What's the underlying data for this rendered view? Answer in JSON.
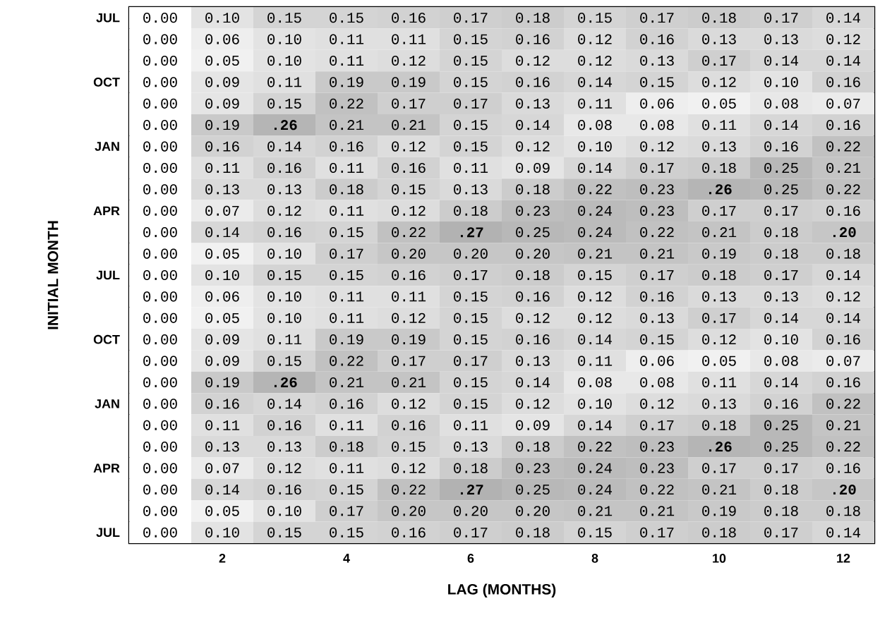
{
  "chart_data": {
    "type": "heatmap",
    "xlabel": "LAG (MONTHS)",
    "ylabel": "INITIAL MONTH",
    "categories": [
      null,
      "2",
      null,
      "4",
      null,
      "6",
      null,
      "8",
      null,
      "10",
      null,
      "12"
    ],
    "y_categories": [
      "JUL",
      null,
      null,
      "OCT",
      null,
      null,
      "JAN",
      null,
      null,
      "APR",
      null,
      null,
      "JUL",
      null,
      null,
      "OCT",
      null,
      null,
      "JAN",
      null,
      null,
      "APR",
      null,
      null,
      "JUL"
    ],
    "cells": [
      [
        0.0,
        0.1,
        0.15,
        0.15,
        0.16,
        0.17,
        0.18,
        0.15,
        0.17,
        0.18,
        0.17,
        0.14
      ],
      [
        0.0,
        0.06,
        0.1,
        0.11,
        0.11,
        0.15,
        0.16,
        0.12,
        0.16,
        0.13,
        0.13,
        0.12
      ],
      [
        0.0,
        0.05,
        0.1,
        0.11,
        0.12,
        0.15,
        0.12,
        0.12,
        0.13,
        0.17,
        0.14,
        0.14
      ],
      [
        0.0,
        0.09,
        0.11,
        0.19,
        0.19,
        0.15,
        0.16,
        0.14,
        0.15,
        0.12,
        0.1,
        0.16
      ],
      [
        0.0,
        0.09,
        0.15,
        0.22,
        0.17,
        0.17,
        0.13,
        0.11,
        0.06,
        0.05,
        0.08,
        0.07
      ],
      [
        0.0,
        0.19,
        0.26,
        0.21,
        0.21,
        0.15,
        0.14,
        0.08,
        0.08,
        0.11,
        0.14,
        0.16
      ],
      [
        0.0,
        0.16,
        0.14,
        0.16,
        0.12,
        0.15,
        0.12,
        0.1,
        0.12,
        0.13,
        0.16,
        0.22
      ],
      [
        0.0,
        0.11,
        0.16,
        0.11,
        0.16,
        0.11,
        0.09,
        0.14,
        0.17,
        0.18,
        0.25,
        0.21
      ],
      [
        0.0,
        0.13,
        0.13,
        0.18,
        0.15,
        0.13,
        0.18,
        0.22,
        0.23,
        0.26,
        0.25,
        0.22
      ],
      [
        0.0,
        0.07,
        0.12,
        0.11,
        0.12,
        0.18,
        0.23,
        0.24,
        0.23,
        0.17,
        0.17,
        0.16
      ],
      [
        0.0,
        0.14,
        0.16,
        0.15,
        0.22,
        0.27,
        0.25,
        0.24,
        0.22,
        0.21,
        0.18,
        0.2
      ],
      [
        0.0,
        0.05,
        0.1,
        0.17,
        0.2,
        0.2,
        0.2,
        0.21,
        0.21,
        0.19,
        0.18,
        0.18
      ],
      [
        0.0,
        0.1,
        0.15,
        0.15,
        0.16,
        0.17,
        0.18,
        0.15,
        0.17,
        0.18,
        0.17,
        0.14
      ],
      [
        0.0,
        0.06,
        0.1,
        0.11,
        0.11,
        0.15,
        0.16,
        0.12,
        0.16,
        0.13,
        0.13,
        0.12
      ],
      [
        0.0,
        0.05,
        0.1,
        0.11,
        0.12,
        0.15,
        0.12,
        0.12,
        0.13,
        0.17,
        0.14,
        0.14
      ],
      [
        0.0,
        0.09,
        0.11,
        0.19,
        0.19,
        0.15,
        0.16,
        0.14,
        0.15,
        0.12,
        0.1,
        0.16
      ],
      [
        0.0,
        0.09,
        0.15,
        0.22,
        0.17,
        0.17,
        0.13,
        0.11,
        0.06,
        0.05,
        0.08,
        0.07
      ],
      [
        0.0,
        0.19,
        0.26,
        0.21,
        0.21,
        0.15,
        0.14,
        0.08,
        0.08,
        0.11,
        0.14,
        0.16
      ],
      [
        0.0,
        0.16,
        0.14,
        0.16,
        0.12,
        0.15,
        0.12,
        0.1,
        0.12,
        0.13,
        0.16,
        0.22
      ],
      [
        0.0,
        0.11,
        0.16,
        0.11,
        0.16,
        0.11,
        0.09,
        0.14,
        0.17,
        0.18,
        0.25,
        0.21
      ],
      [
        0.0,
        0.13,
        0.13,
        0.18,
        0.15,
        0.13,
        0.18,
        0.22,
        0.23,
        0.26,
        0.25,
        0.22
      ],
      [
        0.0,
        0.07,
        0.12,
        0.11,
        0.12,
        0.18,
        0.23,
        0.24,
        0.23,
        0.17,
        0.17,
        0.16
      ],
      [
        0.0,
        0.14,
        0.16,
        0.15,
        0.22,
        0.27,
        0.25,
        0.24,
        0.22,
        0.21,
        0.18,
        0.2
      ],
      [
        0.0,
        0.05,
        0.1,
        0.17,
        0.2,
        0.2,
        0.2,
        0.21,
        0.21,
        0.19,
        0.18,
        0.18
      ],
      [
        0.0,
        0.1,
        0.15,
        0.15,
        0.16,
        0.17,
        0.18,
        0.15,
        0.17,
        0.18,
        0.17,
        0.14
      ]
    ],
    "cell_labels": [
      [
        "0.00",
        "0.10",
        "0.15",
        "0.15",
        "0.16",
        "0.17",
        "0.18",
        "0.15",
        "0.17",
        "0.18",
        "0.17",
        "0.14"
      ],
      [
        "0.00",
        "0.06",
        "0.10",
        "0.11",
        "0.11",
        "0.15",
        "0.16",
        "0.12",
        "0.16",
        "0.13",
        "0.13",
        "0.12"
      ],
      [
        "0.00",
        "0.05",
        "0.10",
        "0.11",
        "0.12",
        "0.15",
        "0.12",
        "0.12",
        "0.13",
        "0.17",
        "0.14",
        "0.14"
      ],
      [
        "0.00",
        "0.09",
        "0.11",
        "0.19",
        "0.19",
        "0.15",
        "0.16",
        "0.14",
        "0.15",
        "0.12",
        "0.10",
        "0.16"
      ],
      [
        "0.00",
        "0.09",
        "0.15",
        "0.22",
        "0.17",
        "0.17",
        "0.13",
        "0.11",
        "0.06",
        "0.05",
        "0.08",
        "0.07"
      ],
      [
        "0.00",
        "0.19",
        ".26",
        "0.21",
        "0.21",
        "0.15",
        "0.14",
        "0.08",
        "0.08",
        "0.11",
        "0.14",
        "0.16"
      ],
      [
        "0.00",
        "0.16",
        "0.14",
        "0.16",
        "0.12",
        "0.15",
        "0.12",
        "0.10",
        "0.12",
        "0.13",
        "0.16",
        "0.22"
      ],
      [
        "0.00",
        "0.11",
        "0.16",
        "0.11",
        "0.16",
        "0.11",
        "0.09",
        "0.14",
        "0.17",
        "0.18",
        "0.25",
        "0.21"
      ],
      [
        "0.00",
        "0.13",
        "0.13",
        "0.18",
        "0.15",
        "0.13",
        "0.18",
        "0.22",
        "0.23",
        ".26",
        "0.25",
        "0.22"
      ],
      [
        "0.00",
        "0.07",
        "0.12",
        "0.11",
        "0.12",
        "0.18",
        "0.23",
        "0.24",
        "0.23",
        "0.17",
        "0.17",
        "0.16"
      ],
      [
        "0.00",
        "0.14",
        "0.16",
        "0.15",
        "0.22",
        ".27",
        "0.25",
        "0.24",
        "0.22",
        "0.21",
        "0.18",
        ".20"
      ],
      [
        "0.00",
        "0.05",
        "0.10",
        "0.17",
        "0.20",
        "0.20",
        "0.20",
        "0.21",
        "0.21",
        "0.19",
        "0.18",
        "0.18"
      ],
      [
        "0.00",
        "0.10",
        "0.15",
        "0.15",
        "0.16",
        "0.17",
        "0.18",
        "0.15",
        "0.17",
        "0.18",
        "0.17",
        "0.14"
      ],
      [
        "0.00",
        "0.06",
        "0.10",
        "0.11",
        "0.11",
        "0.15",
        "0.16",
        "0.12",
        "0.16",
        "0.13",
        "0.13",
        "0.12"
      ],
      [
        "0.00",
        "0.05",
        "0.10",
        "0.11",
        "0.12",
        "0.15",
        "0.12",
        "0.12",
        "0.13",
        "0.17",
        "0.14",
        "0.14"
      ],
      [
        "0.00",
        "0.09",
        "0.11",
        "0.19",
        "0.19",
        "0.15",
        "0.16",
        "0.14",
        "0.15",
        "0.12",
        "0.10",
        "0.16"
      ],
      [
        "0.00",
        "0.09",
        "0.15",
        "0.22",
        "0.17",
        "0.17",
        "0.13",
        "0.11",
        "0.06",
        "0.05",
        "0.08",
        "0.07"
      ],
      [
        "0.00",
        "0.19",
        ".26",
        "0.21",
        "0.21",
        "0.15",
        "0.14",
        "0.08",
        "0.08",
        "0.11",
        "0.14",
        "0.16"
      ],
      [
        "0.00",
        "0.16",
        "0.14",
        "0.16",
        "0.12",
        "0.15",
        "0.12",
        "0.10",
        "0.12",
        "0.13",
        "0.16",
        "0.22"
      ],
      [
        "0.00",
        "0.11",
        "0.16",
        "0.11",
        "0.16",
        "0.11",
        "0.09",
        "0.14",
        "0.17",
        "0.18",
        "0.25",
        "0.21"
      ],
      [
        "0.00",
        "0.13",
        "0.13",
        "0.18",
        "0.15",
        "0.13",
        "0.18",
        "0.22",
        "0.23",
        ".26",
        "0.25",
        "0.22"
      ],
      [
        "0.00",
        "0.07",
        "0.12",
        "0.11",
        "0.12",
        "0.18",
        "0.23",
        "0.24",
        "0.23",
        "0.17",
        "0.17",
        "0.16"
      ],
      [
        "0.00",
        "0.14",
        "0.16",
        "0.15",
        "0.22",
        ".27",
        "0.25",
        "0.24",
        "0.22",
        "0.21",
        "0.18",
        ".20"
      ],
      [
        "0.00",
        "0.05",
        "0.10",
        "0.17",
        "0.20",
        "0.20",
        "0.20",
        "0.21",
        "0.21",
        "0.19",
        "0.18",
        "0.18"
      ],
      [
        "0.00",
        "0.10",
        "0.15",
        "0.15",
        "0.16",
        "0.17",
        "0.18",
        "0.15",
        "0.17",
        "0.18",
        "0.17",
        "0.14"
      ]
    ]
  }
}
